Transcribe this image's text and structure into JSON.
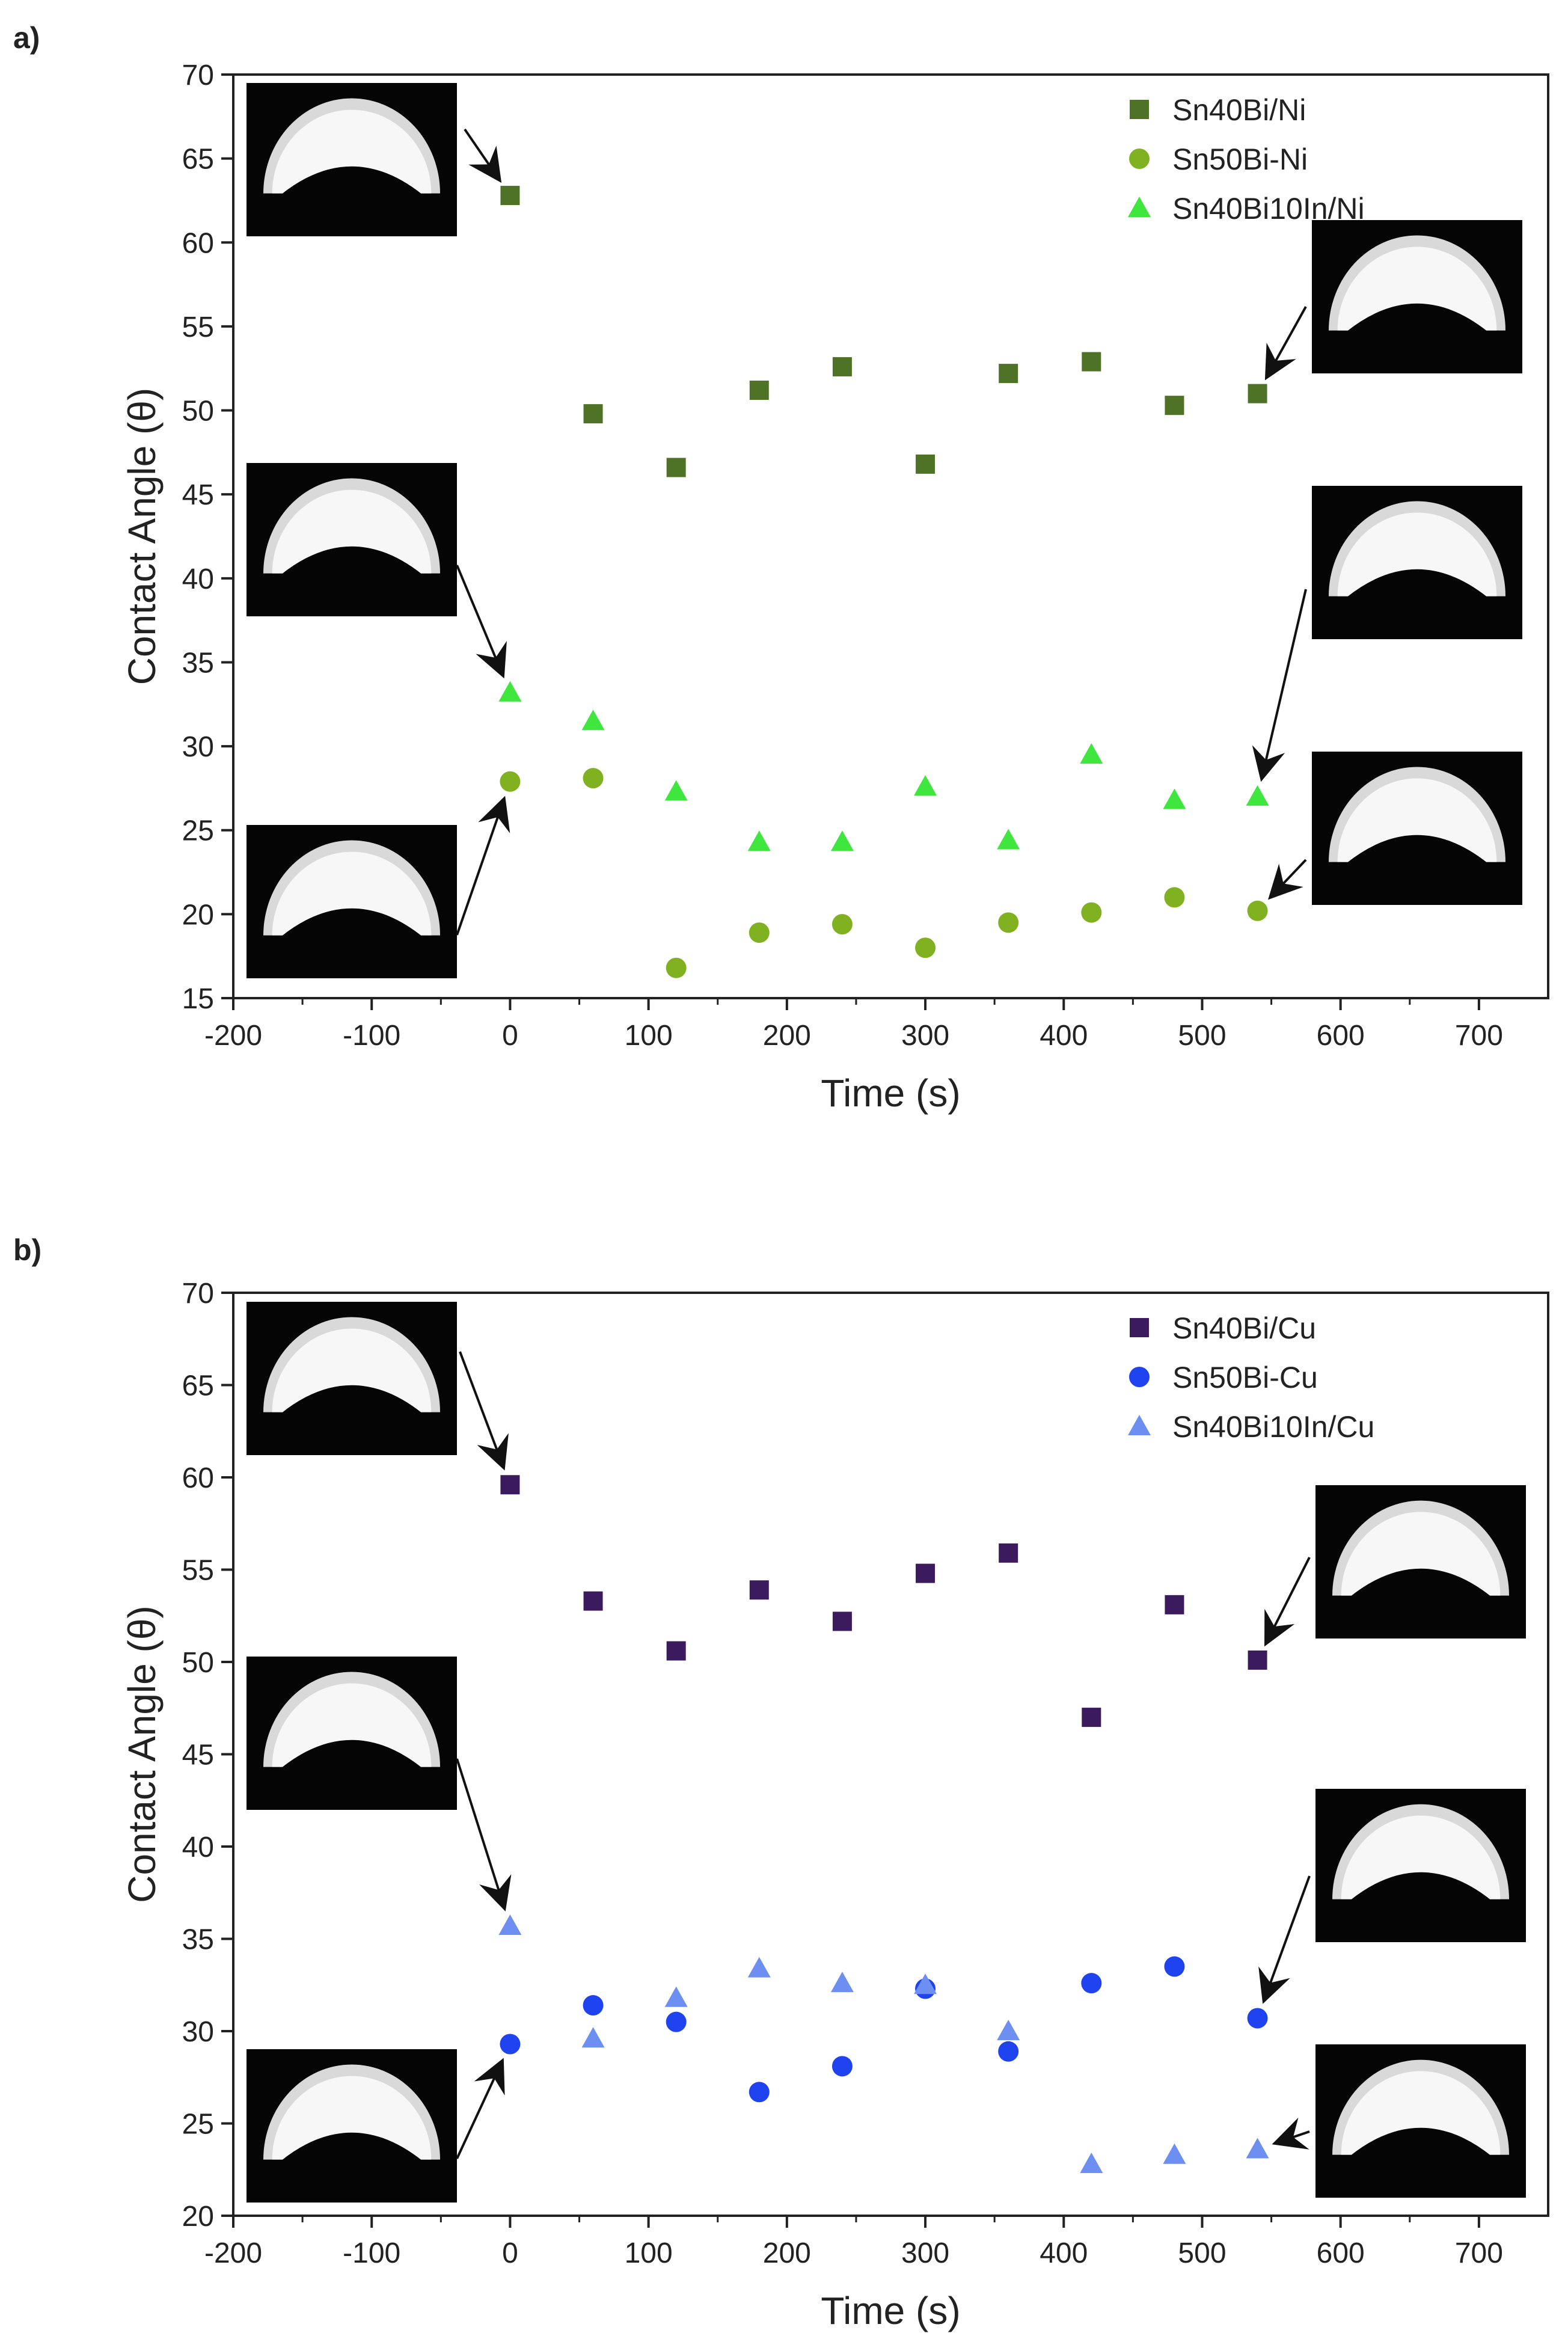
{
  "chart_data": [
    {
      "type": "scatter",
      "panel_label": "a)",
      "xlabel": "Time (s)",
      "ylabel": "Contact Angle (θ)",
      "xlim": [
        -200,
        750
      ],
      "ylim": [
        15,
        70
      ],
      "xticks": [
        -200,
        -100,
        0,
        100,
        200,
        300,
        400,
        500,
        600,
        700
      ],
      "yticks": [
        15,
        20,
        25,
        30,
        35,
        40,
        45,
        50,
        55,
        60,
        65,
        70
      ],
      "grid": false,
      "legend_position": "top-right",
      "series": [
        {
          "name": "Sn40Bi/Ni",
          "marker": "square",
          "color": "#4f7326",
          "x": [
            0,
            60,
            120,
            180,
            240,
            300,
            360,
            420,
            480,
            540
          ],
          "y": [
            62.8,
            49.8,
            46.6,
            51.2,
            52.6,
            46.8,
            52.2,
            52.9,
            50.3,
            51.0
          ]
        },
        {
          "name": "Sn50Bi-Ni",
          "marker": "circle",
          "color": "#7fb121",
          "x": [
            0,
            60,
            120,
            180,
            240,
            300,
            360,
            420,
            480,
            540
          ],
          "y": [
            27.9,
            28.1,
            16.8,
            18.9,
            19.4,
            18.0,
            19.5,
            20.1,
            21.0,
            20.2
          ]
        },
        {
          "name": "Sn40Bi10In/Ni",
          "marker": "triangle",
          "color": "#3ee63e",
          "x": [
            0,
            60,
            120,
            180,
            240,
            300,
            360,
            420,
            480,
            540
          ],
          "y": [
            33.2,
            31.5,
            27.3,
            24.3,
            24.3,
            27.6,
            24.4,
            29.5,
            26.8,
            27.0
          ]
        }
      ]
    },
    {
      "type": "scatter",
      "panel_label": "b)",
      "xlabel": "Time (s)",
      "ylabel": "Contact Angle (θ)",
      "xlim": [
        -200,
        750
      ],
      "ylim": [
        20,
        70
      ],
      "xticks": [
        -200,
        -100,
        0,
        100,
        200,
        300,
        400,
        500,
        600,
        700
      ],
      "yticks": [
        20,
        25,
        30,
        35,
        40,
        45,
        50,
        55,
        60,
        65,
        70
      ],
      "grid": false,
      "legend_position": "top-right",
      "series": [
        {
          "name": "Sn40Bi/Cu",
          "marker": "square",
          "color": "#3b1a5e",
          "x": [
            0,
            60,
            120,
            180,
            240,
            300,
            360,
            420,
            480,
            540
          ],
          "y": [
            59.6,
            53.3,
            50.6,
            53.9,
            52.2,
            54.8,
            55.9,
            47.0,
            53.1,
            50.1
          ]
        },
        {
          "name": "Sn50Bi-Cu",
          "marker": "circle",
          "color": "#1f43ee",
          "x": [
            0,
            60,
            120,
            180,
            240,
            300,
            360,
            420,
            480,
            540
          ],
          "y": [
            29.3,
            31.4,
            30.5,
            26.7,
            28.1,
            32.3,
            28.9,
            32.6,
            33.5,
            30.7
          ]
        },
        {
          "name": "Sn40Bi10In/Cu",
          "marker": "triangle",
          "color": "#6e8ff2",
          "x": [
            0,
            60,
            120,
            180,
            240,
            300,
            360,
            420,
            480,
            540
          ],
          "y": [
            35.7,
            29.6,
            31.8,
            33.4,
            32.6,
            32.5,
            30.0,
            22.8,
            23.3,
            23.6
          ]
        }
      ]
    }
  ]
}
